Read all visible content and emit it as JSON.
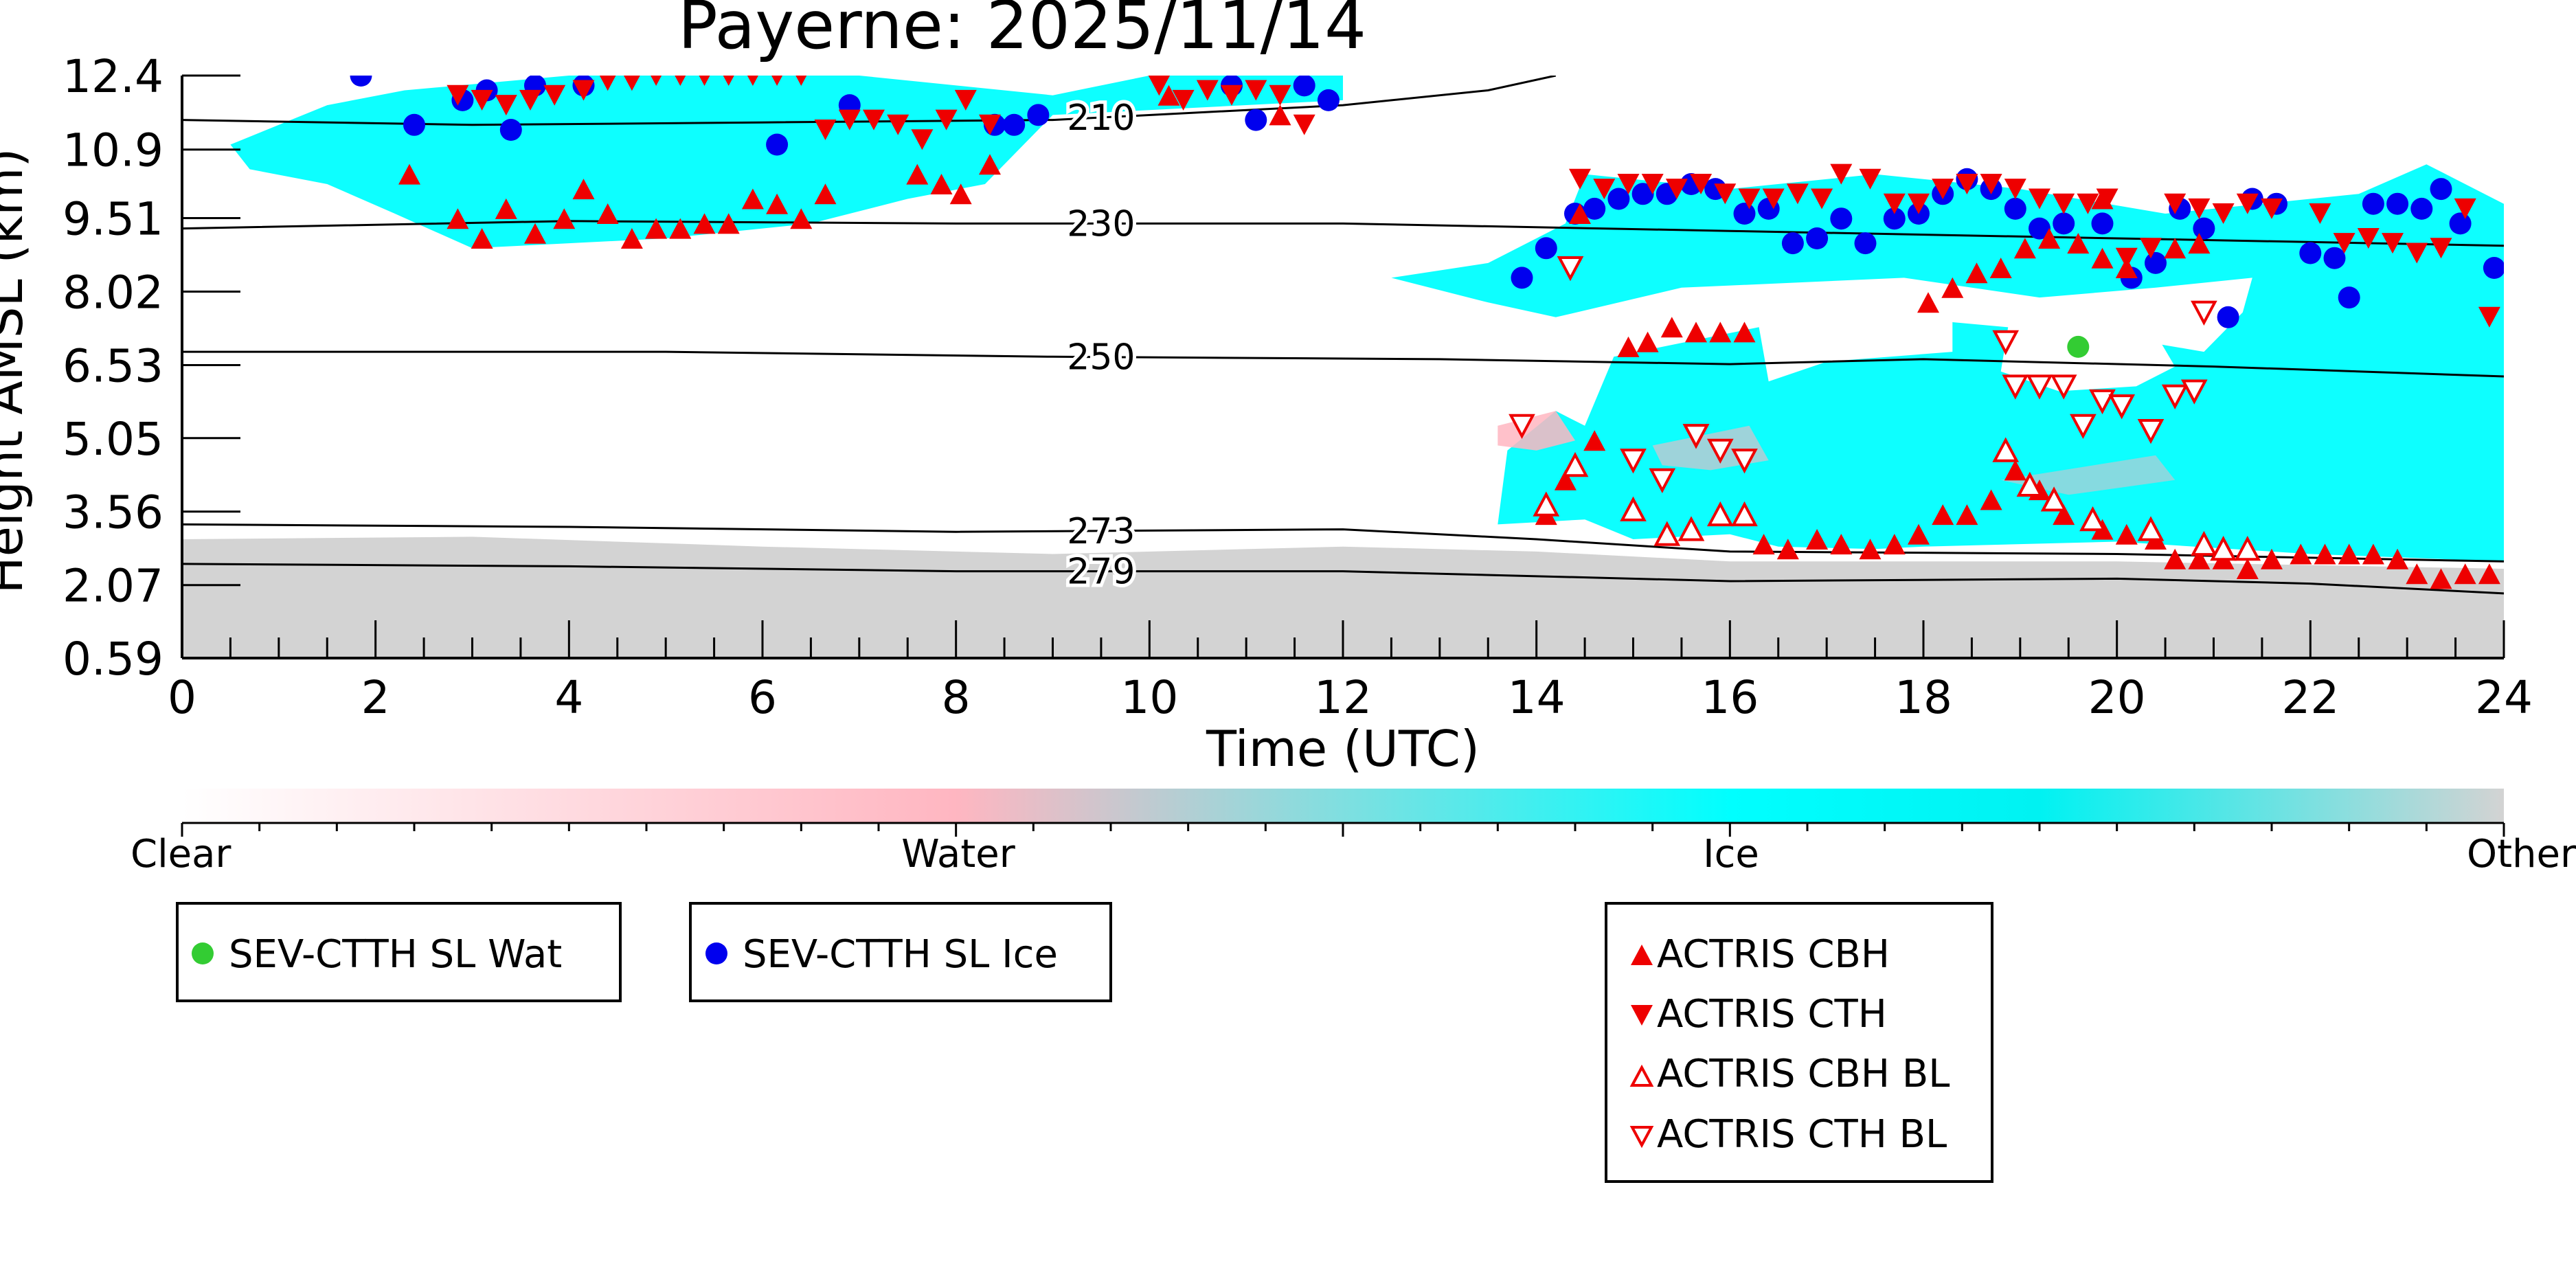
{
  "chart_data": {
    "type": "scatter",
    "title": "Payerne: 2025/11/14",
    "xlabel": "Time (UTC)",
    "ylabel": "Height AMSL (km)",
    "xlim": [
      0,
      24
    ],
    "ylim": [
      0.59,
      12.4
    ],
    "x_ticks": [
      "0",
      "2",
      "4",
      "6",
      "8",
      "10",
      "12",
      "14",
      "16",
      "18",
      "20",
      "22",
      "24"
    ],
    "y_ticks": [
      "0.59",
      "2.07",
      "3.56",
      "5.05",
      "6.53",
      "8.02",
      "9.51",
      "10.9",
      "12.4"
    ],
    "y_tick_values": [
      0.59,
      2.07,
      3.56,
      5.05,
      6.53,
      8.02,
      9.51,
      10.9,
      12.4
    ],
    "colorbar": {
      "labels": [
        "Clear",
        "Water",
        "Ice",
        "Other"
      ],
      "colors": [
        "#ffffff",
        "#ffb6c1",
        "#00ffff",
        "#d3d3d3"
      ]
    },
    "isotherms": [
      {
        "label": "210",
        "points": [
          [
            0,
            11.5
          ],
          [
            3,
            11.4
          ],
          [
            6,
            11.45
          ],
          [
            9,
            11.5
          ],
          [
            12,
            11.8
          ],
          [
            13.5,
            12.1
          ],
          [
            14.2,
            12.4
          ]
        ]
      },
      {
        "label": "230",
        "points": [
          [
            0,
            9.3
          ],
          [
            4,
            9.45
          ],
          [
            8,
            9.4
          ],
          [
            12,
            9.4
          ],
          [
            16,
            9.25
          ],
          [
            20,
            9.1
          ],
          [
            24,
            8.95
          ]
        ]
      },
      {
        "label": "250",
        "points": [
          [
            0,
            6.8
          ],
          [
            5,
            6.8
          ],
          [
            9,
            6.7
          ],
          [
            13,
            6.65
          ],
          [
            16,
            6.55
          ],
          [
            18,
            6.65
          ],
          [
            21,
            6.5
          ],
          [
            24,
            6.3
          ]
        ]
      },
      {
        "label": "273",
        "points": [
          [
            0,
            3.3
          ],
          [
            4,
            3.25
          ],
          [
            8,
            3.15
          ],
          [
            12,
            3.2
          ],
          [
            14,
            3.0
          ],
          [
            16,
            2.75
          ],
          [
            20,
            2.7
          ],
          [
            24,
            2.55
          ]
        ]
      },
      {
        "label": "279",
        "points": [
          [
            0,
            2.5
          ],
          [
            4,
            2.45
          ],
          [
            8,
            2.35
          ],
          [
            12,
            2.35
          ],
          [
            16,
            2.15
          ],
          [
            20,
            2.2
          ],
          [
            22,
            2.1
          ],
          [
            24,
            1.9
          ]
        ]
      }
    ],
    "series": [
      {
        "name": "SEV-CTTH SL Wat",
        "marker": "circle",
        "color": "#33cc33",
        "points": [
          [
            19.6,
            6.9
          ]
        ]
      },
      {
        "name": "SEV-CTTH SL Ice",
        "marker": "circle",
        "color": "#0000ee",
        "points": [
          [
            1.85,
            12.4
          ],
          [
            2.4,
            11.4
          ],
          [
            2.9,
            11.9
          ],
          [
            3.15,
            12.1
          ],
          [
            3.4,
            11.3
          ],
          [
            3.65,
            12.2
          ],
          [
            4.15,
            12.2
          ],
          [
            6.15,
            11.0
          ],
          [
            6.9,
            11.8
          ],
          [
            8.4,
            11.4
          ],
          [
            8.6,
            11.4
          ],
          [
            8.85,
            11.6
          ],
          [
            10.85,
            12.2
          ],
          [
            11.1,
            11.5
          ],
          [
            11.6,
            12.2
          ],
          [
            11.85,
            11.9
          ],
          [
            13.85,
            8.3
          ],
          [
            14.1,
            8.9
          ],
          [
            14.4,
            9.6
          ],
          [
            14.6,
            9.7
          ],
          [
            14.85,
            9.9
          ],
          [
            15.1,
            10.0
          ],
          [
            15.35,
            10.0
          ],
          [
            15.6,
            10.2
          ],
          [
            15.85,
            10.1
          ],
          [
            16.15,
            9.6
          ],
          [
            16.4,
            9.7
          ],
          [
            16.65,
            9.0
          ],
          [
            16.9,
            9.1
          ],
          [
            17.15,
            9.5
          ],
          [
            17.4,
            9.0
          ],
          [
            17.7,
            9.5
          ],
          [
            17.95,
            9.6
          ],
          [
            18.2,
            10.0
          ],
          [
            18.45,
            10.3
          ],
          [
            18.7,
            10.1
          ],
          [
            18.95,
            9.7
          ],
          [
            19.2,
            9.3
          ],
          [
            19.45,
            9.4
          ],
          [
            19.85,
            9.4
          ],
          [
            20.15,
            8.3
          ],
          [
            20.4,
            8.6
          ],
          [
            20.65,
            9.7
          ],
          [
            20.9,
            9.3
          ],
          [
            21.15,
            7.5
          ],
          [
            21.4,
            9.9
          ],
          [
            21.65,
            9.8
          ],
          [
            22.0,
            8.8
          ],
          [
            22.25,
            8.7
          ],
          [
            22.4,
            7.9
          ],
          [
            22.65,
            9.8
          ],
          [
            22.9,
            9.8
          ],
          [
            23.15,
            9.7
          ],
          [
            23.35,
            10.1
          ],
          [
            23.55,
            9.4
          ],
          [
            23.9,
            8.5
          ]
        ]
      },
      {
        "name": "ACTRIS CBH",
        "marker": "triangle-up",
        "color": "#ee0000",
        "filled": true,
        "points": [
          [
            2.35,
            10.4
          ],
          [
            2.85,
            9.5
          ],
          [
            3.1,
            9.1
          ],
          [
            3.35,
            9.7
          ],
          [
            3.65,
            9.2
          ],
          [
            3.95,
            9.5
          ],
          [
            4.15,
            10.1
          ],
          [
            4.4,
            9.6
          ],
          [
            4.65,
            9.1
          ],
          [
            4.9,
            9.3
          ],
          [
            5.15,
            9.3
          ],
          [
            5.4,
            9.4
          ],
          [
            5.65,
            9.4
          ],
          [
            5.9,
            9.9
          ],
          [
            6.15,
            9.8
          ],
          [
            6.4,
            9.5
          ],
          [
            6.65,
            10.0
          ],
          [
            7.6,
            10.4
          ],
          [
            7.85,
            10.2
          ],
          [
            8.05,
            10.0
          ],
          [
            8.35,
            10.6
          ],
          [
            10.2,
            12.0
          ],
          [
            11.35,
            11.6
          ],
          [
            14.1,
            3.5
          ],
          [
            14.3,
            4.2
          ],
          [
            14.6,
            5.0
          ],
          [
            14.95,
            6.9
          ],
          [
            15.15,
            7.0
          ],
          [
            15.4,
            7.3
          ],
          [
            15.65,
            7.2
          ],
          [
            15.9,
            7.2
          ],
          [
            16.15,
            7.2
          ],
          [
            16.35,
            2.9
          ],
          [
            16.6,
            2.8
          ],
          [
            16.9,
            3.0
          ],
          [
            17.15,
            2.9
          ],
          [
            17.45,
            2.8
          ],
          [
            17.7,
            2.9
          ],
          [
            17.95,
            3.1
          ],
          [
            18.2,
            3.5
          ],
          [
            18.45,
            3.5
          ],
          [
            18.7,
            3.8
          ],
          [
            18.95,
            4.4
          ],
          [
            19.2,
            4.0
          ],
          [
            19.45,
            3.5
          ],
          [
            19.85,
            3.2
          ],
          [
            20.1,
            3.1
          ],
          [
            20.4,
            3.0
          ],
          [
            20.6,
            2.6
          ],
          [
            20.85,
            2.6
          ],
          [
            21.1,
            2.6
          ],
          [
            21.35,
            2.4
          ],
          [
            21.6,
            2.6
          ],
          [
            21.9,
            2.7
          ],
          [
            22.15,
            2.7
          ],
          [
            22.4,
            2.7
          ],
          [
            22.65,
            2.7
          ],
          [
            22.9,
            2.6
          ],
          [
            23.1,
            2.3
          ],
          [
            23.35,
            2.2
          ],
          [
            23.6,
            2.3
          ],
          [
            23.85,
            2.3
          ],
          [
            18.05,
            7.8
          ],
          [
            18.3,
            8.1
          ],
          [
            18.55,
            8.4
          ],
          [
            18.8,
            8.5
          ],
          [
            19.05,
            8.9
          ],
          [
            19.3,
            9.1
          ],
          [
            19.6,
            9.0
          ],
          [
            19.85,
            8.7
          ],
          [
            20.1,
            8.5
          ],
          [
            20.6,
            8.9
          ],
          [
            20.85,
            9.0
          ],
          [
            14.45,
            9.6
          ],
          [
            19.85,
            9.9
          ]
        ]
      },
      {
        "name": "ACTRIS CTH",
        "marker": "triangle-down",
        "color": "#ee0000",
        "filled": true,
        "points": [
          [
            2.85,
            12.0
          ],
          [
            3.1,
            11.9
          ],
          [
            3.35,
            11.8
          ],
          [
            3.6,
            11.9
          ],
          [
            3.85,
            12.0
          ],
          [
            4.15,
            12.1
          ],
          [
            4.4,
            12.3
          ],
          [
            4.65,
            12.3
          ],
          [
            4.9,
            12.4
          ],
          [
            5.15,
            12.4
          ],
          [
            5.4,
            12.4
          ],
          [
            5.65,
            12.4
          ],
          [
            5.9,
            12.4
          ],
          [
            6.15,
            12.4
          ],
          [
            6.4,
            12.4
          ],
          [
            6.65,
            11.3
          ],
          [
            6.9,
            11.5
          ],
          [
            7.15,
            11.5
          ],
          [
            7.4,
            11.4
          ],
          [
            7.65,
            11.1
          ],
          [
            7.9,
            11.5
          ],
          [
            8.1,
            11.9
          ],
          [
            8.35,
            11.4
          ],
          [
            10.1,
            12.2
          ],
          [
            10.35,
            11.9
          ],
          [
            10.6,
            12.1
          ],
          [
            10.85,
            12.0
          ],
          [
            11.1,
            12.1
          ],
          [
            11.35,
            12.0
          ],
          [
            11.6,
            11.4
          ],
          [
            14.45,
            10.3
          ],
          [
            14.7,
            10.1
          ],
          [
            14.95,
            10.2
          ],
          [
            15.2,
            10.2
          ],
          [
            15.45,
            10.1
          ],
          [
            15.7,
            10.2
          ],
          [
            15.95,
            10.0
          ],
          [
            16.2,
            9.9
          ],
          [
            16.45,
            9.9
          ],
          [
            16.7,
            10.0
          ],
          [
            16.95,
            9.9
          ],
          [
            17.15,
            10.4
          ],
          [
            17.45,
            10.3
          ],
          [
            17.7,
            9.8
          ],
          [
            17.95,
            9.8
          ],
          [
            18.2,
            10.1
          ],
          [
            18.45,
            10.2
          ],
          [
            18.7,
            10.2
          ],
          [
            18.95,
            10.1
          ],
          [
            19.2,
            9.9
          ],
          [
            19.45,
            9.8
          ],
          [
            19.7,
            9.8
          ],
          [
            19.9,
            9.9
          ],
          [
            20.1,
            8.7
          ],
          [
            20.35,
            8.9
          ],
          [
            20.6,
            9.8
          ],
          [
            20.85,
            9.7
          ],
          [
            21.1,
            9.6
          ],
          [
            21.35,
            9.8
          ],
          [
            21.6,
            9.7
          ],
          [
            22.1,
            9.6
          ],
          [
            22.35,
            9.0
          ],
          [
            22.6,
            9.1
          ],
          [
            22.85,
            9.0
          ],
          [
            23.1,
            8.8
          ],
          [
            23.35,
            8.9
          ],
          [
            23.6,
            9.7
          ],
          [
            23.85,
            7.5
          ]
        ]
      },
      {
        "name": "ACTRIS CBH BL",
        "marker": "triangle-up",
        "color": "#ee0000",
        "filled": false,
        "points": [
          [
            14.1,
            3.7
          ],
          [
            14.4,
            4.5
          ],
          [
            15.0,
            3.6
          ],
          [
            15.35,
            3.1
          ],
          [
            15.6,
            3.2
          ],
          [
            15.9,
            3.5
          ],
          [
            16.15,
            3.5
          ],
          [
            18.85,
            4.8
          ],
          [
            19.1,
            4.1
          ],
          [
            19.35,
            3.8
          ],
          [
            19.75,
            3.4
          ],
          [
            20.35,
            3.2
          ],
          [
            20.9,
            2.9
          ],
          [
            21.1,
            2.8
          ],
          [
            21.35,
            2.8
          ]
        ]
      },
      {
        "name": "ACTRIS CTH BL",
        "marker": "triangle-down",
        "color": "#ee0000",
        "filled": false,
        "points": [
          [
            13.85,
            5.3
          ],
          [
            14.35,
            8.5
          ],
          [
            15.0,
            4.6
          ],
          [
            15.3,
            4.2
          ],
          [
            15.65,
            5.1
          ],
          [
            15.9,
            4.8
          ],
          [
            16.15,
            4.6
          ],
          [
            18.85,
            7.0
          ],
          [
            18.95,
            6.1
          ],
          [
            19.2,
            6.1
          ],
          [
            19.45,
            6.1
          ],
          [
            19.65,
            5.3
          ],
          [
            19.85,
            5.8
          ],
          [
            20.05,
            5.7
          ],
          [
            20.35,
            5.2
          ],
          [
            20.6,
            5.9
          ],
          [
            20.8,
            6.0
          ],
          [
            20.9,
            7.6
          ],
          [
            15.65,
            5.1
          ]
        ]
      }
    ],
    "legends": [
      {
        "placement": "bottom-left",
        "entries": [
          "SEV-CTTH SL Wat"
        ]
      },
      {
        "placement": "bottom-left",
        "entries": [
          "SEV-CTTH SL Ice"
        ]
      },
      {
        "placement": "bottom-center",
        "entries": [
          "ACTRIS CBH",
          "ACTRIS CTH",
          "ACTRIS CBH BL",
          "ACTRIS CTH BL"
        ]
      }
    ],
    "grid": false
  },
  "colors": {
    "wat": "#33cc33",
    "ice_dot": "#0000ee",
    "actris": "#ee0000",
    "ice": "#00ffff",
    "water": "#ffb6c1",
    "other": "#d3d3d3"
  }
}
